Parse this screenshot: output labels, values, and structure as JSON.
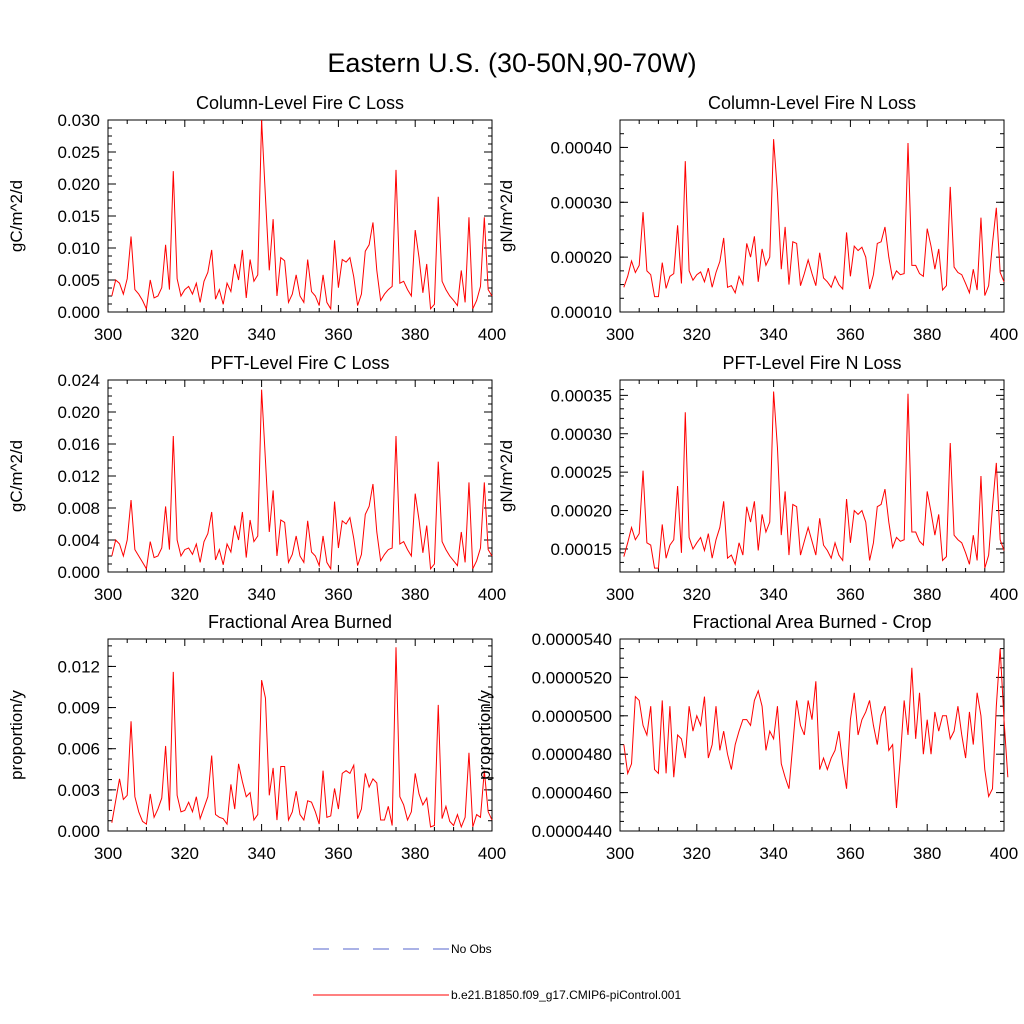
{
  "figure": {
    "title": "Eastern U.S. (30-50N,90-70W)"
  },
  "colors": {
    "model": "#ff0000",
    "obs": "#5566cc",
    "axes": "#000000"
  },
  "legend": {
    "entries": [
      {
        "label": "No Obs",
        "style": "dashed",
        "color": "#5566cc"
      },
      {
        "label": "b.e21.B1850.f09_g17.CMIP6-piControl.001",
        "style": "solid",
        "color": "#ff0000"
      }
    ]
  },
  "chart_data": [
    {
      "type": "line",
      "title": "Column-Level Fire C Loss",
      "xlabel": "",
      "ylabel": "gC/m^2/d",
      "xlim": [
        300,
        400
      ],
      "ylim": [
        0,
        0.03
      ],
      "xticks": [
        300,
        320,
        340,
        360,
        380,
        400
      ],
      "xtick_labels": [
        "300",
        "320",
        "340",
        "360",
        "380",
        "400"
      ],
      "yticks": [
        0,
        0.005,
        0.01,
        0.015,
        0.02,
        0.025,
        0.03
      ],
      "ytick_labels": [
        "0.000",
        "0.005",
        "0.010",
        "0.015",
        "0.020",
        "0.025",
        "0.030"
      ],
      "x_start": 301,
      "series": [
        {
          "name": "b.e21.B1850.f09_g17.CMIP6-piControl.001",
          "values": [
            0.0025,
            0.005,
            0.0045,
            0.0028,
            0.0052,
            0.0118,
            0.0035,
            0.0028,
            0.0018,
            0.0005,
            0.005,
            0.0022,
            0.0025,
            0.0038,
            0.0105,
            0.0035,
            0.022,
            0.0052,
            0.0025,
            0.0035,
            0.004,
            0.0028,
            0.0045,
            0.0015,
            0.0048,
            0.0062,
            0.0097,
            0.002,
            0.0035,
            0.0012,
            0.0045,
            0.0032,
            0.0075,
            0.005,
            0.0097,
            0.0022,
            0.0082,
            0.0048,
            0.0058,
            0.03,
            0.018,
            0.0065,
            0.0145,
            0.0025,
            0.0085,
            0.008,
            0.0015,
            0.0028,
            0.0058,
            0.0025,
            0.0015,
            0.0082,
            0.0032,
            0.0025,
            0.001,
            0.0058,
            0.0015,
            0.0005,
            0.0112,
            0.0038,
            0.0082,
            0.0078,
            0.0085,
            0.0055,
            0.001,
            0.0028,
            0.0095,
            0.0105,
            0.014,
            0.0065,
            0.0018,
            0.0028,
            0.0035,
            0.004,
            0.0222,
            0.0045,
            0.0048,
            0.0035,
            0.0025,
            0.0128,
            0.0085,
            0.003,
            0.0075,
            0.0005,
            0.0012,
            0.018,
            0.0048,
            0.0035,
            0.0025,
            0.0018,
            0.001,
            0.0065,
            0.0015,
            0.0148,
            0.0005,
            0.0018,
            0.004,
            0.0148,
            0.0035,
            0.0025
          ]
        }
      ]
    },
    {
      "type": "line",
      "title": "Column-Level Fire N Loss",
      "xlabel": "",
      "ylabel": "gN/m^2/d",
      "xlim": [
        300,
        400
      ],
      "ylim": [
        0.0001,
        0.00045
      ],
      "xticks": [
        300,
        320,
        340,
        360,
        380,
        400
      ],
      "xtick_labels": [
        "300",
        "320",
        "340",
        "360",
        "380",
        "400"
      ],
      "yticks": [
        0.0001,
        0.0002,
        0.0003,
        0.0004
      ],
      "ytick_labels": [
        "0.00010",
        "0.00020",
        "0.00030",
        "0.00040"
      ],
      "x_start": 301,
      "series": [
        {
          "name": "b.e21.B1850.f09_g17.CMIP6-piControl.001",
          "values": [
            0.000145,
            0.000165,
            0.000193,
            0.000172,
            0.000185,
            0.000282,
            0.000175,
            0.000168,
            0.000128,
            0.000128,
            0.00019,
            0.000143,
            0.000165,
            0.00017,
            0.000258,
            0.000152,
            0.000375,
            0.000175,
            0.000158,
            0.000168,
            0.000173,
            0.000155,
            0.00018,
            0.000145,
            0.000172,
            0.000192,
            0.000235,
            0.000145,
            0.000148,
            0.000135,
            0.000165,
            0.00015,
            0.000225,
            0.0002,
            0.000238,
            0.000155,
            0.000215,
            0.000185,
            0.0002,
            0.000415,
            0.000318,
            0.000178,
            0.000255,
            0.00015,
            0.000228,
            0.000225,
            0.000148,
            0.00017,
            0.000195,
            0.00017,
            0.000148,
            0.000208,
            0.000162,
            0.000155,
            0.000145,
            0.000165,
            0.00015,
            0.000142,
            0.000245,
            0.000165,
            0.00022,
            0.000212,
            0.000218,
            0.0002,
            0.000142,
            0.000168,
            0.000225,
            0.000228,
            0.000255,
            0.0002,
            0.00016,
            0.000175,
            0.000168,
            0.00017,
            0.000408,
            0.000185,
            0.000185,
            0.00017,
            0.000165,
            0.000252,
            0.00022,
            0.000178,
            0.000215,
            0.00014,
            0.000148,
            0.000328,
            0.000182,
            0.000172,
            0.000168,
            0.000152,
            0.000135,
            0.000178,
            0.00014,
            0.000272,
            0.00013,
            0.000148,
            0.000225,
            0.00029,
            0.000172,
            0.000155
          ]
        }
      ]
    },
    {
      "type": "line",
      "title": "PFT-Level Fire C Loss",
      "xlabel": "",
      "ylabel": "gC/m^2/d",
      "xlim": [
        300,
        400
      ],
      "ylim": [
        0,
        0.024
      ],
      "xticks": [
        300,
        320,
        340,
        360,
        380,
        400
      ],
      "xtick_labels": [
        "300",
        "320",
        "340",
        "360",
        "380",
        "400"
      ],
      "yticks": [
        0,
        0.004,
        0.008,
        0.012,
        0.016,
        0.02,
        0.024
      ],
      "ytick_labels": [
        "0.000",
        "0.004",
        "0.008",
        "0.012",
        "0.016",
        "0.020",
        "0.024"
      ],
      "x_start": 301,
      "series": [
        {
          "name": "b.e21.B1850.f09_g17.CMIP6-piControl.001",
          "values": [
            0.002,
            0.004,
            0.0035,
            0.002,
            0.004,
            0.009,
            0.0028,
            0.002,
            0.0012,
            0.0004,
            0.0038,
            0.0018,
            0.002,
            0.003,
            0.0082,
            0.0028,
            0.017,
            0.004,
            0.002,
            0.0028,
            0.003,
            0.0022,
            0.0035,
            0.0012,
            0.0038,
            0.0048,
            0.0075,
            0.0015,
            0.0028,
            0.0009,
            0.0035,
            0.0025,
            0.0058,
            0.004,
            0.0075,
            0.0018,
            0.0065,
            0.0038,
            0.0045,
            0.0228,
            0.014,
            0.005,
            0.0102,
            0.002,
            0.0065,
            0.0062,
            0.0012,
            0.0022,
            0.0045,
            0.002,
            0.0012,
            0.0064,
            0.0025,
            0.002,
            0.0008,
            0.0045,
            0.0012,
            0.0004,
            0.0088,
            0.003,
            0.0064,
            0.006,
            0.0068,
            0.0042,
            0.0008,
            0.0022,
            0.0072,
            0.0082,
            0.011,
            0.005,
            0.0014,
            0.0022,
            0.0028,
            0.003,
            0.017,
            0.0035,
            0.0038,
            0.0028,
            0.002,
            0.0098,
            0.0065,
            0.0024,
            0.0058,
            0.0004,
            0.001,
            0.0138,
            0.0038,
            0.0028,
            0.002,
            0.0014,
            0.0008,
            0.005,
            0.0012,
            0.0112,
            0.0004,
            0.0014,
            0.003,
            0.0112,
            0.0028,
            0.002
          ]
        }
      ]
    },
    {
      "type": "line",
      "title": "PFT-Level Fire N Loss",
      "xlabel": "",
      "ylabel": "gN/m^2/d",
      "xlim": [
        300,
        400
      ],
      "ylim": [
        0.00012,
        0.00037
      ],
      "xticks": [
        300,
        320,
        340,
        360,
        380,
        400
      ],
      "xtick_labels": [
        "300",
        "320",
        "340",
        "360",
        "380",
        "400"
      ],
      "yticks": [
        0.00015,
        0.0002,
        0.00025,
        0.0003,
        0.00035
      ],
      "ytick_labels": [
        "0.00015",
        "0.00020",
        "0.00025",
        "0.00030",
        "0.00035"
      ],
      "x_start": 301,
      "series": [
        {
          "name": "b.e21.B1850.f09_g17.CMIP6-piControl.001",
          "values": [
            0.00014,
            0.000158,
            0.000178,
            0.000162,
            0.00017,
            0.000252,
            0.000158,
            0.000155,
            0.000125,
            0.000125,
            0.000182,
            0.000138,
            0.000155,
            0.000162,
            0.000232,
            0.000145,
            0.000328,
            0.000165,
            0.00015,
            0.000158,
            0.000165,
            0.000148,
            0.00017,
            0.000138,
            0.000162,
            0.000178,
            0.000212,
            0.000138,
            0.000142,
            0.00013,
            0.000158,
            0.000142,
            0.000205,
            0.000185,
            0.000212,
            0.000148,
            0.000195,
            0.000172,
            0.000185,
            0.000355,
            0.000282,
            0.000168,
            0.000225,
            0.000142,
            0.000208,
            0.000205,
            0.000142,
            0.00016,
            0.000178,
            0.00016,
            0.000142,
            0.00019,
            0.000155,
            0.000148,
            0.000138,
            0.000158,
            0.000142,
            0.000135,
            0.000215,
            0.000158,
            0.0002,
            0.000195,
            0.0002,
            0.000185,
            0.000135,
            0.000158,
            0.000205,
            0.000208,
            0.000228,
            0.000185,
            0.000152,
            0.000165,
            0.00016,
            0.000162,
            0.000352,
            0.000172,
            0.000172,
            0.00016,
            0.000155,
            0.000225,
            0.000198,
            0.000168,
            0.000195,
            0.000135,
            0.00014,
            0.000288,
            0.000168,
            0.000162,
            0.000158,
            0.000145,
            0.00013,
            0.000168,
            0.000135,
            0.000245,
            0.000125,
            0.000142,
            0.000205,
            0.000262,
            0.000162,
            0.000148
          ]
        }
      ]
    },
    {
      "type": "line",
      "title": "Fractional Area Burned",
      "xlabel": "",
      "ylabel": "proportion/y",
      "xlim": [
        300,
        400
      ],
      "ylim": [
        0,
        0.014
      ],
      "xticks": [
        300,
        320,
        340,
        360,
        380,
        400
      ],
      "xtick_labels": [
        "300",
        "320",
        "340",
        "360",
        "380",
        "400"
      ],
      "yticks": [
        0,
        0.003,
        0.006,
        0.009,
        0.012
      ],
      "ytick_labels": [
        "0.000",
        "0.003",
        "0.006",
        "0.009",
        "0.012"
      ],
      "x_start": 301,
      "series": [
        {
          "name": "b.e21.B1850.f09_g17.CMIP6-piControl.001",
          "values": [
            0.0006,
            0.0022,
            0.0038,
            0.0023,
            0.0026,
            0.008,
            0.0025,
            0.0014,
            0.0007,
            0.0005,
            0.0027,
            0.001,
            0.0016,
            0.0024,
            0.0062,
            0.0015,
            0.0116,
            0.0026,
            0.0014,
            0.0015,
            0.0021,
            0.0014,
            0.0025,
            0.0009,
            0.0017,
            0.0025,
            0.0055,
            0.0012,
            0.001,
            0.0009,
            0.0005,
            0.0034,
            0.0016,
            0.0049,
            0.0036,
            0.0025,
            0.0028,
            0.0008,
            0.0012,
            0.011,
            0.0097,
            0.0026,
            0.0046,
            0.0008,
            0.0047,
            0.0047,
            0.0008,
            0.0014,
            0.0029,
            0.0012,
            0.0008,
            0.0022,
            0.0021,
            0.0014,
            0.0005,
            0.0044,
            0.001,
            0.0011,
            0.0031,
            0.0016,
            0.0042,
            0.0044,
            0.0042,
            0.0048,
            0.0009,
            0.0016,
            0.0042,
            0.0032,
            0.0038,
            0.0035,
            0.0008,
            0.0008,
            0.0018,
            0.0004,
            0.0134,
            0.0025,
            0.0019,
            0.0008,
            0.0014,
            0.0042,
            0.0027,
            0.0019,
            0.0024,
            0.0003,
            0.0004,
            0.0092,
            0.0009,
            0.0018,
            0.0007,
            0.0004,
            0.0012,
            0.0003,
            0.001,
            0.0057,
            0.0003,
            0.0012,
            0.001,
            0.0044,
            0.0014,
            0.0008
          ]
        }
      ]
    },
    {
      "type": "line",
      "title": "Fractional Area Burned - Crop",
      "xlabel": "",
      "ylabel": "proportion/y",
      "xlim": [
        300,
        400
      ],
      "ylim": [
        4.4e-05,
        5.4e-05
      ],
      "xticks": [
        300,
        320,
        340,
        360,
        380,
        400
      ],
      "xtick_labels": [
        "300",
        "320",
        "340",
        "360",
        "380",
        "400"
      ],
      "yticks": [
        4.4e-05,
        4.6e-05,
        4.8e-05,
        5e-05,
        5.2e-05,
        5.4e-05
      ],
      "ytick_labels": [
        "0.0000440",
        "0.0000460",
        "0.0000480",
        "0.0000500",
        "0.0000520",
        "0.0000540"
      ],
      "x_start": 301,
      "series": [
        {
          "name": "b.e21.B1850.f09_g17.CMIP6-piControl.001",
          "values": [
            4.85e-05,
            4.7e-05,
            4.75e-05,
            5.1e-05,
            5.08e-05,
            4.95e-05,
            4.9e-05,
            5.05e-05,
            4.72e-05,
            4.7e-05,
            5.08e-05,
            4.7e-05,
            5.05e-05,
            4.68e-05,
            4.9e-05,
            4.88e-05,
            4.78e-05,
            5.05e-05,
            4.92e-05,
            5e-05,
            4.95e-05,
            5.1e-05,
            4.78e-05,
            4.85e-05,
            5.05e-05,
            4.82e-05,
            4.92e-05,
            4.8e-05,
            4.72e-05,
            4.85e-05,
            4.92e-05,
            4.98e-05,
            4.98e-05,
            4.95e-05,
            5.08e-05,
            5.13e-05,
            5.05e-05,
            4.82e-05,
            4.92e-05,
            4.88e-05,
            5.05e-05,
            4.75e-05,
            4.68e-05,
            4.62e-05,
            4.85e-05,
            5.08e-05,
            4.95e-05,
            4.9e-05,
            5.08e-05,
            4.98e-05,
            5.18e-05,
            4.72e-05,
            4.78e-05,
            4.72e-05,
            4.78e-05,
            4.82e-05,
            4.92e-05,
            4.75e-05,
            4.62e-05,
            4.98e-05,
            5.12e-05,
            4.9e-05,
            4.98e-05,
            5.02e-05,
            5.08e-05,
            4.95e-05,
            4.85e-05,
            5e-05,
            5.05e-05,
            4.82e-05,
            4.85e-05,
            4.52e-05,
            4.78e-05,
            5.08e-05,
            4.9e-05,
            5.25e-05,
            4.88e-05,
            5.12e-05,
            4.8e-05,
            4.98e-05,
            4.8e-05,
            5.02e-05,
            4.92e-05,
            5e-05,
            5e-05,
            4.88e-05,
            4.92e-05,
            5.05e-05,
            4.9e-05,
            4.78e-05,
            5.02e-05,
            4.85e-05,
            5.12e-05,
            5e-05,
            4.72e-05,
            4.58e-05,
            4.62e-05,
            5.05e-05,
            5.35e-05,
            4.98e-05,
            4.68e-05
          ]
        }
      ]
    }
  ]
}
